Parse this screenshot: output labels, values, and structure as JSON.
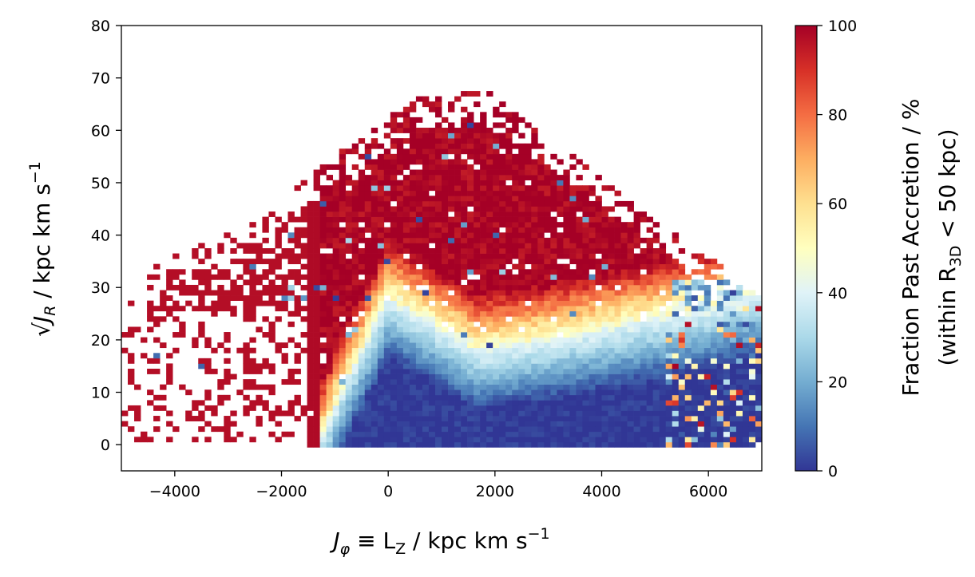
{
  "chart_data": {
    "type": "heatmap",
    "title": "",
    "xlabel": {
      "main": "J",
      "sub_main": "φ",
      "rest": " ≡ L",
      "sub_rest": "Z",
      "units": " / kpc km s",
      "exp": "−1"
    },
    "ylabel": {
      "main": "√J",
      "sub_main": "R",
      "units": " / kpc km s",
      "exp": "−1"
    },
    "colorbar_label": {
      "line1": "Fraction Past Accretion / %",
      "line2_pre": "(within R",
      "line2_sub": "3D",
      "line2_post": " < 50 kpc)"
    },
    "xlim": [
      -5000,
      7000
    ],
    "ylim": [
      -5,
      80
    ],
    "clim": [
      0,
      100
    ],
    "xticks": [
      -4000,
      -2000,
      0,
      2000,
      4000,
      6000
    ],
    "xtick_labels": [
      "−4000",
      "−2000",
      "0",
      "2000",
      "4000",
      "6000"
    ],
    "yticks": [
      0,
      10,
      20,
      30,
      40,
      50,
      60,
      70,
      80
    ],
    "ytick_labels": [
      "0",
      "10",
      "20",
      "30",
      "40",
      "50",
      "60",
      "70",
      "80"
    ],
    "cticks": [
      0,
      20,
      40,
      60,
      80,
      100
    ],
    "ctick_labels": [
      "0",
      "20",
      "40",
      "60",
      "80",
      "100"
    ],
    "colormap": "RdYlBu_r",
    "colormap_stops": [
      "#313695",
      "#4575b4",
      "#74add1",
      "#abd9e9",
      "#e0f3f8",
      "#ffffbf",
      "#fee090",
      "#fdae61",
      "#f46d43",
      "#d73027",
      "#a50026"
    ],
    "bin_width_x": 120,
    "bin_height_y": 1,
    "features": {
      "low_fraction_core_x_range": [
        -1300,
        6800
      ],
      "core_peak_at_x": 0,
      "core_peak_sqrtJR": 28,
      "transition_sqrtJR_at_x_1700": 18,
      "transition_sqrtJR_at_x_6000": 26,
      "populated_upper_envelope_peak": 70
    },
    "grid": false
  }
}
